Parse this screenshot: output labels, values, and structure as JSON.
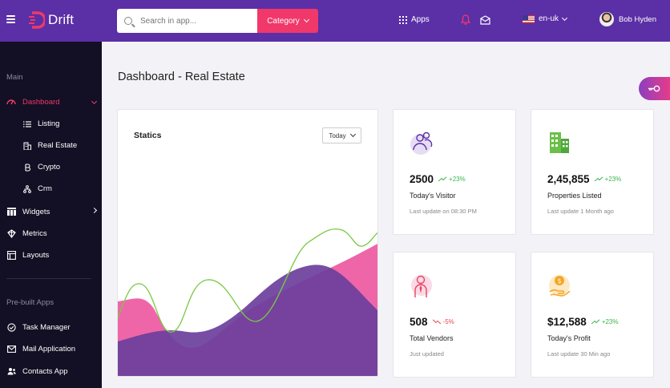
{
  "header": {
    "brand": "Drift",
    "search_placeholder": "Search in app...",
    "category_label": "Category",
    "apps_label": "Apps",
    "language": "en-uk",
    "user_name": "Bob Hyden",
    "colors": {
      "topbar": "#5b2fa6",
      "accent": "#f0386b"
    }
  },
  "sidebar": {
    "section_main": "Main",
    "items": [
      {
        "label": "Dashboard",
        "icon": "dashboard-icon",
        "active": true
      },
      {
        "label": "Listing",
        "icon": "list-icon"
      },
      {
        "label": "Real Estate",
        "icon": "building-icon"
      },
      {
        "label": "Crypto",
        "icon": "bitcoin-icon"
      },
      {
        "label": "Crm",
        "icon": "sitemap-icon"
      },
      {
        "label": "Widgets",
        "icon": "widgets-icon"
      },
      {
        "label": "Metrics",
        "icon": "metrics-icon"
      },
      {
        "label": "Layouts",
        "icon": "layout-icon"
      }
    ],
    "section_prebuilt": "Pre-built Apps",
    "apps": [
      {
        "label": "Task Manager",
        "icon": "check-circle-icon"
      },
      {
        "label": "Mail Application",
        "icon": "mail-icon"
      },
      {
        "label": "Contacts App",
        "icon": "contacts-icon"
      }
    ]
  },
  "page": {
    "title": "Dashboard - Real Estate"
  },
  "statics": {
    "title": "Statics",
    "period": "Today"
  },
  "stats": [
    {
      "value": "2500",
      "trend": "+23%",
      "direction": "up",
      "label": "Today's Visitor",
      "sub": "Last update on 08:30 PM",
      "icon": "visitors-icon"
    },
    {
      "value": "2,45,855",
      "trend": "+23%",
      "direction": "up",
      "label": "Properties Listed",
      "sub": "Last update 1 Month ago",
      "icon": "building-icon"
    },
    {
      "value": "508",
      "trend": "-5%",
      "direction": "down",
      "label": "Total Vendors",
      "sub": "Just updated",
      "icon": "vendor-icon"
    },
    {
      "value": "$12,588",
      "trend": "+23%",
      "direction": "up",
      "label": "Today's Profit",
      "sub": "Last update 30 Min ago",
      "icon": "profit-icon"
    }
  ]
}
